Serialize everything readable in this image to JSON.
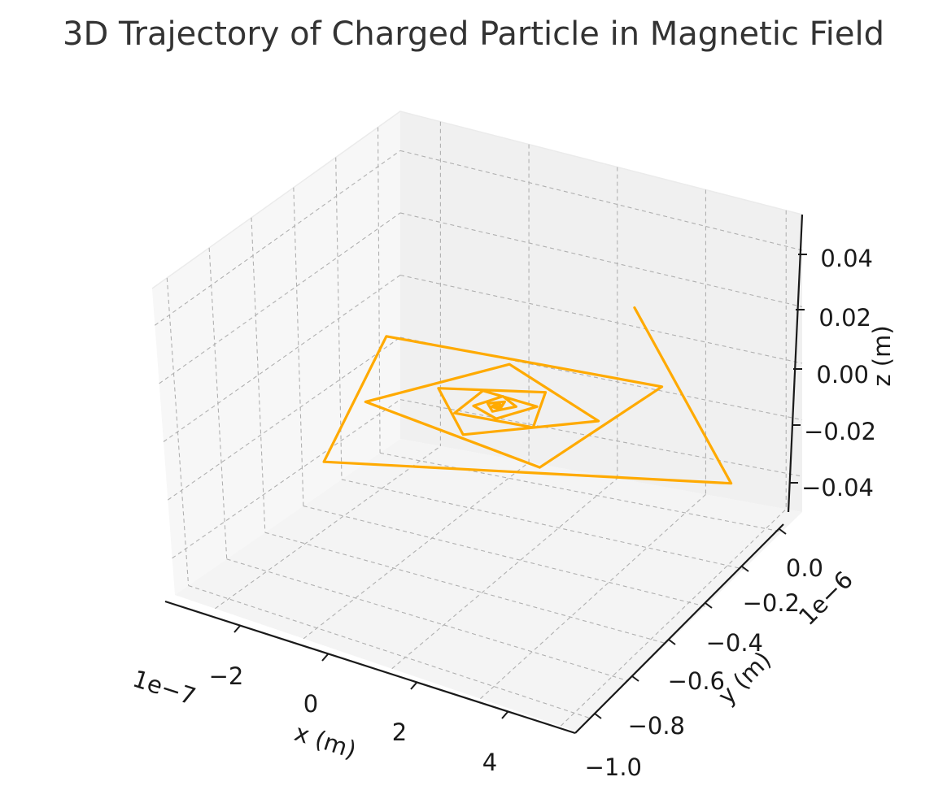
{
  "chart_data": {
    "type": "line3d",
    "title": "3D Trajectory of Charged Particle in Magnetic Field",
    "xlabel": "x (m)",
    "ylabel": "y (m)",
    "zlabel": "z (m)",
    "x_offset_label": "1e−7",
    "y_offset_label": "1e−6",
    "x_ticks": [
      "−2",
      "0",
      "2",
      "4"
    ],
    "y_ticks": [
      "0.0",
      "−0.2",
      "−0.4",
      "−0.6",
      "−0.8",
      "−1.0"
    ],
    "z_ticks": [
      "0.04",
      "0.02",
      "0.00",
      "−0.02",
      "−0.04"
    ],
    "grid": true,
    "series": [
      {
        "color": "#ffaa00",
        "points_screen_order": [
          [
            0.67,
            0.385
          ],
          [
            0.772,
            0.605
          ],
          [
            0.342,
            0.578
          ],
          [
            0.408,
            0.421
          ],
          [
            0.699,
            0.484
          ],
          [
            0.57,
            0.585
          ],
          [
            0.386,
            0.503
          ],
          [
            0.538,
            0.456
          ],
          [
            0.632,
            0.527
          ],
          [
            0.489,
            0.544
          ],
          [
            0.463,
            0.486
          ],
          [
            0.576,
            0.491
          ],
          [
            0.563,
            0.535
          ],
          [
            0.48,
            0.517
          ],
          [
            0.51,
            0.489
          ],
          [
            0.567,
            0.509
          ],
          [
            0.524,
            0.524
          ],
          [
            0.5,
            0.508
          ],
          [
            0.531,
            0.496
          ],
          [
            0.545,
            0.509
          ],
          [
            0.52,
            0.515
          ],
          [
            0.515,
            0.505
          ],
          [
            0.533,
            0.503
          ],
          [
            0.528,
            0.512
          ],
          [
            0.519,
            0.509
          ],
          [
            0.526,
            0.505
          ],
          [
            0.53,
            0.508
          ],
          [
            0.524,
            0.509
          ]
        ]
      }
    ]
  }
}
